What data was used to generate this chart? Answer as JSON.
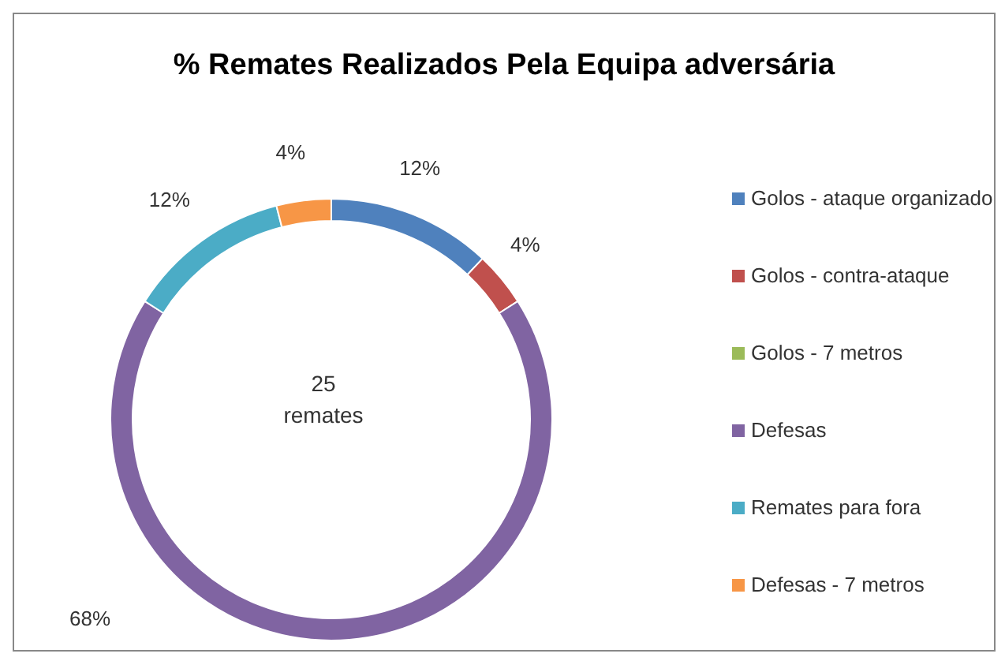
{
  "chart_data": {
    "type": "donut",
    "title": "% Remates Realizados  Pela Equipa adversária",
    "categories": [
      "Golos - ataque organizado",
      "Golos - contra-ataque",
      "Golos - 7 metros",
      "Defesas",
      "Remates para fora",
      "Defesas - 7 metros"
    ],
    "values": [
      12,
      4,
      0,
      68,
      12,
      4
    ],
    "value_labels": [
      "12%",
      "4%",
      null,
      "68%",
      "12%",
      "4%"
    ],
    "colors": [
      "#4f81bd",
      "#c0504d",
      "#9bbb59",
      "#8064a2",
      "#4bacc6",
      "#f79646"
    ],
    "annotations": [
      "25 remates"
    ],
    "legend": "right"
  }
}
